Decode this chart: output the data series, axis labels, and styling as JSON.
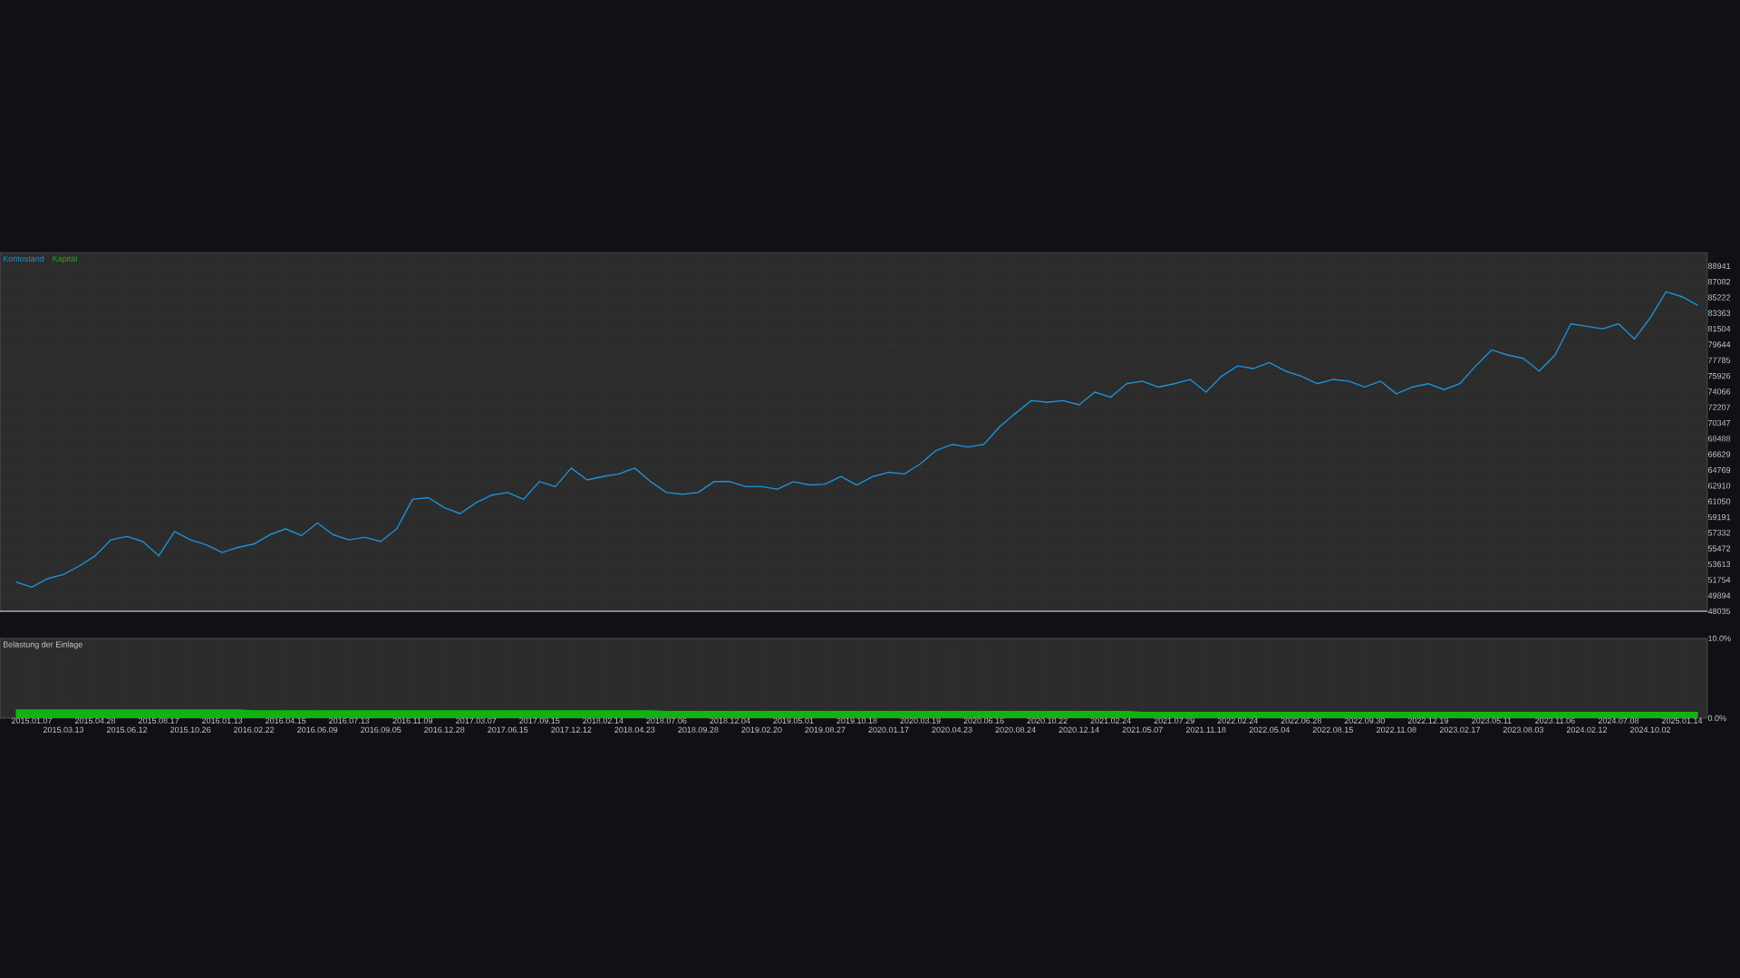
{
  "chart_data": [
    {
      "type": "line",
      "legend": "top left",
      "grid": true,
      "tick_labels": "y",
      "categories": [
        null,
        "2015.01.07",
        null,
        "2015.03.13",
        null,
        "2015.04.28",
        null,
        "2015.06.12",
        null,
        "2015.08.17",
        null,
        "2015.10.26",
        null,
        "2016.01.13",
        null,
        "2016.02.22",
        null,
        "2016.04.15",
        null,
        "2016.06.09",
        null,
        "2016.07.13",
        null,
        "2016.09.05",
        null,
        "2016.11.09",
        null,
        "2016.12.28",
        null,
        "2017.03.07",
        null,
        "2017.06.15",
        null,
        "2017.09.15",
        null,
        "2017.12.12",
        null,
        "2018.02.14",
        null,
        "2018.04.23",
        null,
        "2018.07.06",
        null,
        "2018.09.28",
        null,
        "2018.12.04",
        null,
        "2019.02.20",
        null,
        "2019.05.01",
        null,
        "2019.08.27",
        null,
        "2019.10.18",
        null,
        "2020.01.17",
        null,
        "2020.03.19",
        null,
        "2020.04.23",
        null,
        "2020.06.16",
        null,
        "2020.08.24",
        null,
        "2020.10.22",
        null,
        "2020.12.14",
        null,
        "2021.02.24",
        null,
        "2021.05.07",
        null,
        "2021.07.29",
        null,
        "2021.11.18",
        null,
        "2022.02.24",
        null,
        "2022.05.04",
        null,
        "2022.06.28",
        null,
        "2022.08.15",
        null,
        "2022.09.30",
        null,
        "2022.11.08",
        null,
        "2022.12.19",
        null,
        "2023.02.17",
        null,
        "2023.05.11",
        null,
        "2023.08.03",
        null,
        "2023.11.06",
        null,
        "2024.02.12",
        null,
        "2024.07.08",
        null,
        "2024.10.02",
        null,
        "2025.01.14",
        null
      ],
      "series": [
        {
          "name": "Kapital",
          "color": "#19b21a",
          "values": [
            null,
            null,
            null,
            null,
            null,
            null,
            null,
            null,
            null,
            null,
            null,
            null,
            null,
            null,
            null,
            null,
            null,
            null,
            null,
            null,
            null,
            null,
            null,
            null,
            null,
            null,
            null,
            null,
            null,
            null,
            null,
            null,
            null,
            null,
            null,
            null,
            null,
            null,
            null,
            null,
            null,
            null,
            null,
            null,
            null,
            null,
            null,
            null,
            null,
            null,
            null,
            null,
            null,
            null,
            null,
            null,
            null,
            null,
            null,
            null,
            null,
            null,
            null,
            null,
            null,
            null,
            null,
            null,
            null,
            null,
            null,
            null,
            null,
            null,
            null,
            null,
            null,
            null,
            null,
            null,
            null,
            null,
            null,
            null,
            null,
            null,
            null,
            null,
            null,
            null,
            null,
            null,
            null,
            null,
            null,
            null,
            null,
            null,
            null,
            null,
            null,
            null,
            null,
            null,
            null,
            null,
            null
          ]
        },
        {
          "name": "Kontostand",
          "color": "#1e90d8",
          "values": [
            51500,
            50900,
            51900,
            52400,
            53400,
            54600,
            56500,
            56900,
            56300,
            54600,
            57500,
            56500,
            55900,
            55000,
            55600,
            56000,
            57100,
            57800,
            57000,
            58500,
            57100,
            56500,
            56800,
            56300,
            57800,
            61300,
            61500,
            60300,
            59600,
            60900,
            61800,
            62100,
            61300,
            63400,
            62800,
            65000,
            63600,
            64000,
            64300,
            65000,
            63400,
            62100,
            61900,
            62100,
            63400,
            63400,
            62800,
            62800,
            62500,
            63400,
            63000,
            63100,
            64000,
            63000,
            64000,
            64500,
            64300,
            65500,
            67100,
            67800,
            67500,
            67800,
            69900,
            71500,
            73000,
            72800,
            73000,
            72500,
            74000,
            73400,
            75000,
            75300,
            74600,
            75000,
            75500,
            74000,
            75900,
            77100,
            76800,
            77500,
            76500,
            75900,
            75000,
            75500,
            75300,
            74600,
            75300,
            73800,
            74600,
            75000,
            74300,
            75000,
            77100,
            79000,
            78400,
            78000,
            76500,
            78400,
            82100,
            81800,
            81500,
            82100,
            80300,
            82800,
            85900,
            85300,
            84300
          ]
        }
      ],
      "ylim": [
        48035,
        90530
      ],
      "yticks": [
        48035,
        49894,
        51754,
        53613,
        55472,
        57332,
        59191,
        61050,
        62910,
        64769,
        66629,
        68488,
        70347,
        72207,
        74066,
        75926,
        77785,
        79644,
        81504,
        83363,
        85222,
        87082,
        88941
      ]
    },
    {
      "type": "area",
      "title": "Belastung der Einlage",
      "grid": true,
      "color": "#10b410",
      "categories": [
        null,
        "2015.01.07",
        null,
        "2015.03.13",
        null,
        "2015.04.28",
        null,
        "2015.06.12",
        null,
        "2015.08.17",
        null,
        "2015.10.26",
        null,
        "2016.01.13",
        null,
        "2016.02.22",
        null,
        "2016.04.15",
        null,
        "2016.06.09",
        null,
        "2016.07.13",
        null,
        "2016.09.05",
        null,
        "2016.11.09",
        null,
        "2016.12.28",
        null,
        "2017.03.07",
        null,
        "2017.06.15",
        null,
        "2017.09.15",
        null,
        "2017.12.12",
        null,
        "2018.02.14",
        null,
        "2018.04.23",
        null,
        "2018.07.06",
        null,
        "2018.09.28",
        null,
        "2018.12.04",
        null,
        "2019.02.20",
        null,
        "2019.05.01",
        null,
        "2019.08.27",
        null,
        "2019.10.18",
        null,
        "2020.01.17",
        null,
        "2020.03.19",
        null,
        "2020.04.23",
        null,
        "2020.06.16",
        null,
        "2020.08.24",
        null,
        "2020.10.22",
        null,
        "2020.12.14",
        null,
        "2021.02.24",
        null,
        "2021.05.07",
        null,
        "2021.07.29",
        null,
        "2021.11.18",
        null,
        "2022.02.24",
        null,
        "2022.05.04",
        null,
        "2022.06.28",
        null,
        "2022.08.15",
        null,
        "2022.09.30",
        null,
        "2022.11.08",
        null,
        "2022.12.19",
        null,
        "2023.02.17",
        null,
        "2023.05.11",
        null,
        "2023.08.03",
        null,
        "2023.11.06",
        null,
        "2024.02.12",
        null,
        "2024.07.08",
        null,
        "2024.10.02",
        null,
        "2025.01.14",
        null
      ],
      "values": [
        1.1,
        1.1,
        1.1,
        1.1,
        1.1,
        1.1,
        1.1,
        1.1,
        1.1,
        1.1,
        1.1,
        1.1,
        1.1,
        1.1,
        1.1,
        1.0,
        1.0,
        1.0,
        1.0,
        1.0,
        1.0,
        1.0,
        1.0,
        1.0,
        1.0,
        1.0,
        1.0,
        1.0,
        1.0,
        1.0,
        1.0,
        1.0,
        1.0,
        1.0,
        1.0,
        1.0,
        1.0,
        1.0,
        1.0,
        1.0,
        1.0,
        0.9,
        0.9,
        0.9,
        0.9,
        0.9,
        0.9,
        0.9,
        0.9,
        0.9,
        0.9,
        0.9,
        0.9,
        0.9,
        0.9,
        0.9,
        0.9,
        0.9,
        0.9,
        0.9,
        0.9,
        0.9,
        0.9,
        0.9,
        0.9,
        0.9,
        0.9,
        0.9,
        0.9,
        0.9,
        0.9,
        0.8,
        0.8,
        0.8,
        0.8,
        0.8,
        0.8,
        0.8,
        0.8,
        0.8,
        0.8,
        0.8,
        0.8,
        0.8,
        0.8,
        0.8,
        0.8,
        0.8,
        0.8,
        0.8,
        0.8,
        0.8,
        0.8,
        0.8,
        0.8,
        0.8,
        0.8,
        0.8,
        0.8,
        0.8,
        0.8,
        0.8,
        0.8,
        0.8,
        0.8,
        0.8,
        0.8
      ],
      "ylim": [
        0,
        10
      ],
      "yticks": [
        {
          "value": 0,
          "label": "0.0%"
        },
        {
          "value": 10,
          "label": "10.0%"
        }
      ]
    }
  ]
}
